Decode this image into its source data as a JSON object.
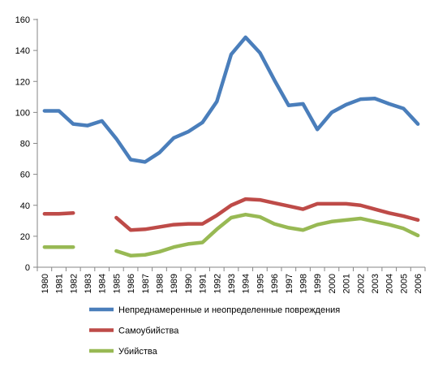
{
  "chart_data": {
    "type": "line",
    "title": "",
    "xlabel": "",
    "ylabel": "",
    "ylim": [
      0,
      160
    ],
    "yticks": [
      0,
      20,
      40,
      60,
      80,
      100,
      120,
      140,
      160
    ],
    "grid": false,
    "legend_position": "bottom",
    "categories": [
      "1980",
      "1981",
      "1982",
      "1983",
      "1984",
      "1985",
      "1986",
      "1987",
      "1988",
      "1989",
      "1990",
      "1991",
      "1992",
      "1993",
      "1994",
      "1995",
      "1996",
      "1997",
      "1998",
      "1999",
      "2000",
      "2001",
      "2002",
      "2003",
      "2004",
      "2005",
      "2006"
    ],
    "series": [
      {
        "name": "Непреднамеренные и неопределенные повреждения",
        "color": "#4a7ebb",
        "values": [
          101,
          101,
          92.5,
          91.5,
          94.5,
          83,
          69.5,
          68,
          74,
          83.5,
          87.5,
          93.5,
          107,
          137.5,
          148.5,
          138.5,
          121,
          104.5,
          105.5,
          89,
          100,
          105,
          108.5,
          109,
          105.5,
          102.5,
          92.5
        ]
      },
      {
        "name": "Самоубийства",
        "color": "#be4b48",
        "values": [
          34.5,
          34.5,
          35,
          null,
          null,
          32,
          24,
          24.5,
          26,
          27.5,
          28,
          28,
          33.5,
          40,
          44,
          43.5,
          41.5,
          39.5,
          37.5,
          41,
          41,
          41,
          40,
          37.5,
          35,
          33,
          30.5
        ]
      },
      {
        "name": "Убийства",
        "color": "#98b954",
        "values": [
          13,
          13,
          13,
          null,
          null,
          10.5,
          7.5,
          8,
          10,
          13,
          15,
          16,
          24.5,
          32,
          34,
          32.5,
          28,
          25.5,
          24,
          27.5,
          29.5,
          30.5,
          31.5,
          29.5,
          27.5,
          25,
          20.5
        ]
      }
    ]
  }
}
